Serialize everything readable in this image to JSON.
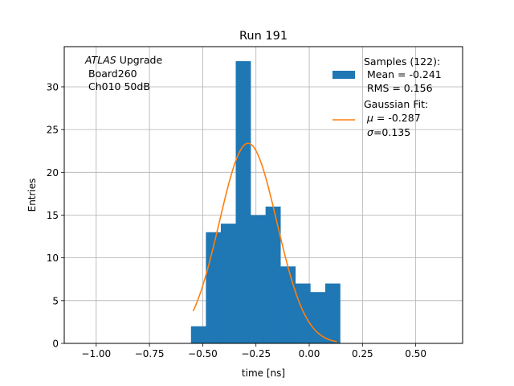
{
  "chart_data": {
    "type": "bar",
    "title": "Run 191",
    "xlabel": "time [ns]",
    "ylabel": "Entries",
    "xlim": [
      -1.15,
      0.72
    ],
    "ylim": [
      0,
      34.7
    ],
    "grid": true,
    "x_ticks": [
      {
        "value": -1.0,
        "label": "−1.00"
      },
      {
        "value": -0.75,
        "label": "−0.75"
      },
      {
        "value": -0.5,
        "label": "−0.50"
      },
      {
        "value": -0.25,
        "label": "−0.25"
      },
      {
        "value": 0.0,
        "label": "0.00"
      },
      {
        "value": 0.25,
        "label": "0.25"
      },
      {
        "value": 0.5,
        "label": "0.50"
      }
    ],
    "y_ticks": [
      {
        "value": 0,
        "label": "0"
      },
      {
        "value": 5,
        "label": "5"
      },
      {
        "value": 10,
        "label": "10"
      },
      {
        "value": 15,
        "label": "15"
      },
      {
        "value": 20,
        "label": "20"
      },
      {
        "value": 25,
        "label": "25"
      },
      {
        "value": 30,
        "label": "30"
      }
    ],
    "annotation": {
      "atlas": "ATLAS",
      "upgrade": " Upgrade",
      "board": "Board260",
      "channel": "Ch010 50dB"
    },
    "histogram": {
      "bin_edges": [
        -0.555,
        -0.485,
        -0.415,
        -0.345,
        -0.275,
        -0.205,
        -0.135,
        -0.065,
        0.005,
        0.075,
        0.145
      ],
      "counts": [
        2,
        13,
        14,
        33,
        15,
        16,
        9,
        7,
        6,
        7
      ],
      "color": "#1f77b4"
    },
    "fit": {
      "mu": -0.287,
      "sigma": 0.135,
      "amplitude": 23.4,
      "x_range": [
        -0.545,
        0.13
      ],
      "color": "#ff7f0e"
    },
    "legend": {
      "placement": "top-right",
      "samples": [
        "Samples (122):",
        " Mean = -0.241",
        " RMS = 0.156"
      ],
      "fit_title": "Gaussian Fit:",
      "fit_mu_value": " = -0.287",
      "fit_sigma_value": "=0.135"
    }
  }
}
